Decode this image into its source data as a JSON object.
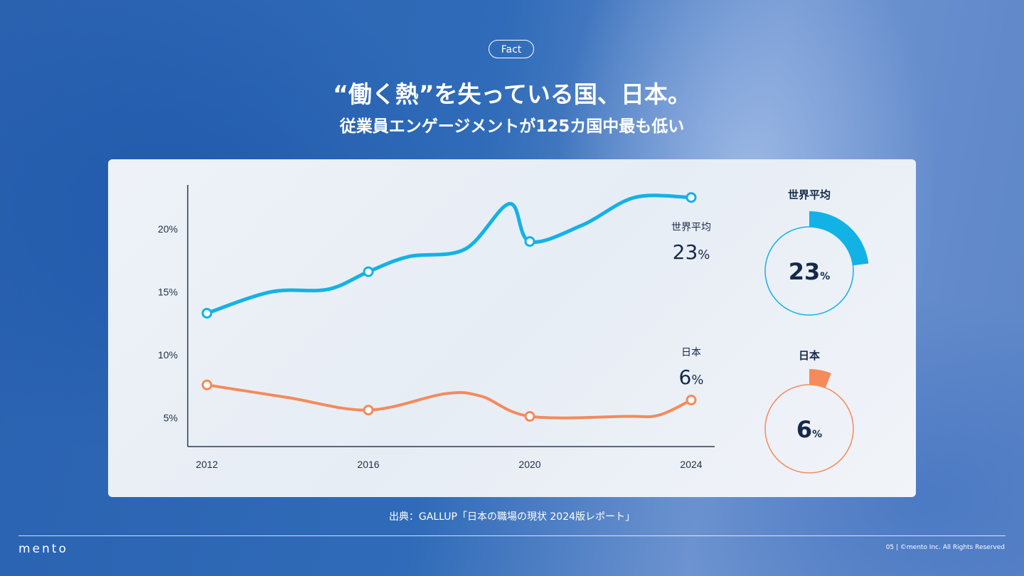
{
  "badge": "Fact",
  "title": "“働く熱”を失っている国、日本。",
  "subtitle": "従業員エンゲージメントが125カ国中最も低い",
  "source": "出典：GALLUP「日本の職場の現状 2024版レポート」",
  "footer": {
    "logo": "mento",
    "page": "05",
    "copyright": "©mento Inc. All Rights Reserved"
  },
  "colors": {
    "world": "#13b2e6",
    "japan": "#f58a5a",
    "text": "#15294a"
  },
  "chart_data": {
    "type": "line",
    "x_ticks": [
      "2012",
      "2016",
      "2020",
      "2024"
    ],
    "y_ticks": [
      "5%",
      "10%",
      "15%",
      "20%"
    ],
    "ylim": [
      2.7,
      23.5
    ],
    "xlim": [
      2012,
      2024
    ],
    "grid": false,
    "series": [
      {
        "name": "世界平均",
        "value_label": "23",
        "unit": "%",
        "color": "#13b2e6",
        "points": [
          [
            2012,
            13.3
          ],
          [
            2016,
            16.6
          ],
          [
            2020,
            19.0
          ],
          [
            2024,
            22.5
          ]
        ],
        "curve": [
          [
            2012,
            13.3
          ],
          [
            2013.6,
            15.0
          ],
          [
            2015,
            15.2
          ],
          [
            2016,
            16.6
          ],
          [
            2017,
            17.8
          ],
          [
            2018.4,
            18.4
          ],
          [
            2019.5,
            22.0
          ],
          [
            2020,
            19.0
          ],
          [
            2021.3,
            20.3
          ],
          [
            2022.6,
            22.5
          ],
          [
            2024,
            22.5
          ]
        ]
      },
      {
        "name": "日本",
        "value_label": "6",
        "unit": "%",
        "color": "#f58a5a",
        "points": [
          [
            2012,
            7.6
          ],
          [
            2016,
            5.6
          ],
          [
            2020,
            5.1
          ],
          [
            2024,
            6.4
          ]
        ],
        "curve": [
          [
            2012,
            7.6
          ],
          [
            2014,
            6.6
          ],
          [
            2016,
            5.6
          ],
          [
            2017.9,
            6.9
          ],
          [
            2018.8,
            6.7
          ],
          [
            2020,
            5.1
          ],
          [
            2022.4,
            5.1
          ],
          [
            2023.2,
            5.2
          ],
          [
            2024,
            6.4
          ]
        ]
      }
    ],
    "gauges": [
      {
        "label": "世界平均",
        "value": 23,
        "display": "23",
        "unit": "%",
        "color": "#13b2e6"
      },
      {
        "label": "日本",
        "value": 6,
        "display": "6",
        "unit": "%",
        "color": "#f58a5a"
      }
    ]
  }
}
